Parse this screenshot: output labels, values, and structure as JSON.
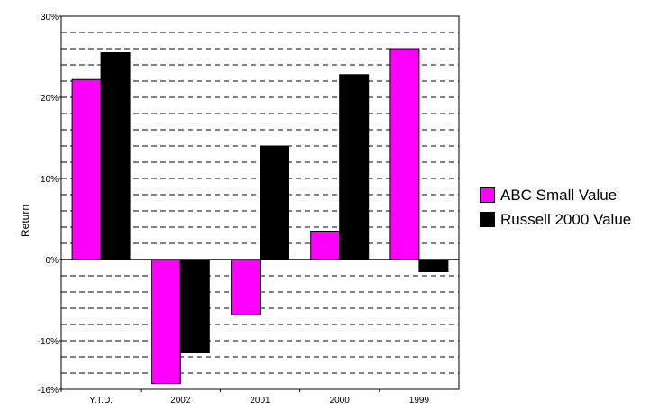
{
  "chart_data": {
    "type": "bar",
    "categories": [
      "Y.T.D.",
      "2002",
      "2001",
      "2000",
      "1999"
    ],
    "series": [
      {
        "name": "ABC Small Value",
        "values": [
          22.2,
          -15.3,
          -6.8,
          3.5,
          26.0
        ]
      },
      {
        "name": "Russell 2000 Value",
        "values": [
          25.5,
          -11.5,
          14.0,
          22.8,
          -1.5
        ]
      }
    ],
    "ylabel": "Return",
    "xlabel": "",
    "ylim": [
      -16,
      30
    ],
    "yticks": [
      {
        "value": 30,
        "label": "30%"
      },
      {
        "value": 20,
        "label": "20%"
      },
      {
        "value": 10,
        "label": "10%"
      },
      {
        "value": 0,
        "label": "0%"
      },
      {
        "value": -10,
        "label": "-10%"
      },
      {
        "value": -16,
        "label": "-16%"
      }
    ],
    "grid": true,
    "grid_style": "dashed",
    "legend_position": "right",
    "colors": [
      "#ff00ff",
      "#000000"
    ]
  }
}
